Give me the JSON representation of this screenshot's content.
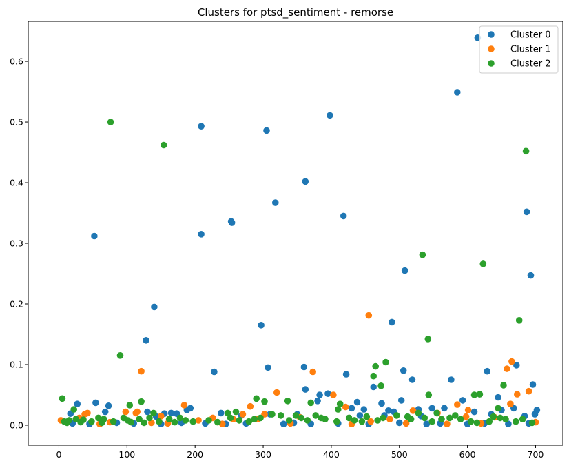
{
  "chart_data": {
    "type": "scatter",
    "title": "Clusters for ptsd_sentiment - remorse",
    "xlabel": "",
    "ylabel": "",
    "xlim": [
      -45,
      740
    ],
    "ylim": [
      -0.033,
      0.666
    ],
    "x_ticks": [
      0,
      100,
      200,
      300,
      400,
      500,
      600,
      700
    ],
    "y_ticks": [
      0.0,
      0.1,
      0.2,
      0.3,
      0.4,
      0.5,
      0.6
    ],
    "grid": false,
    "legend_position": "top-right",
    "series": [
      {
        "name": "Cluster 0",
        "color": "#1f77b4",
        "points": [
          [
            17,
            0.019
          ],
          [
            27,
            0.035
          ],
          [
            52,
            0.312
          ],
          [
            54,
            0.037
          ],
          [
            68,
            0.022
          ],
          [
            73,
            0.032
          ],
          [
            128,
            0.14
          ],
          [
            130,
            0.022
          ],
          [
            140,
            0.195
          ],
          [
            143,
            0.014
          ],
          [
            155,
            0.019
          ],
          [
            165,
            0.02
          ],
          [
            173,
            0.019
          ],
          [
            188,
            0.025
          ],
          [
            193,
            0.028
          ],
          [
            209,
            0.493
          ],
          [
            209,
            0.315
          ],
          [
            228,
            0.088
          ],
          [
            238,
            0.02
          ],
          [
            253,
            0.336
          ],
          [
            254,
            0.334
          ],
          [
            268,
            0.016
          ],
          [
            297,
            0.165
          ],
          [
            305,
            0.486
          ],
          [
            307,
            0.095
          ],
          [
            310,
            0.018
          ],
          [
            318,
            0.367
          ],
          [
            350,
            0.018
          ],
          [
            360,
            0.096
          ],
          [
            362,
            0.402
          ],
          [
            362,
            0.059
          ],
          [
            380,
            0.04
          ],
          [
            383,
            0.05
          ],
          [
            395,
            0.052
          ],
          [
            398,
            0.511
          ],
          [
            418,
            0.345
          ],
          [
            422,
            0.084
          ],
          [
            430,
            0.028
          ],
          [
            438,
            0.038
          ],
          [
            442,
            0.016
          ],
          [
            448,
            0.026
          ],
          [
            462,
            0.063
          ],
          [
            474,
            0.036
          ],
          [
            478,
            0.016
          ],
          [
            484,
            0.024
          ],
          [
            489,
            0.17
          ],
          [
            492,
            0.022
          ],
          [
            503,
            0.041
          ],
          [
            506,
            0.09
          ],
          [
            508,
            0.255
          ],
          [
            519,
            0.075
          ],
          [
            528,
            0.026
          ],
          [
            532,
            0.015
          ],
          [
            548,
            0.028
          ],
          [
            566,
            0.028
          ],
          [
            576,
            0.075
          ],
          [
            585,
            0.549
          ],
          [
            593,
            0.041
          ],
          [
            610,
            0.022
          ],
          [
            615,
            0.639
          ],
          [
            629,
            0.089
          ],
          [
            635,
            0.018
          ],
          [
            645,
            0.046
          ],
          [
            650,
            0.025
          ],
          [
            668,
            0.028
          ],
          [
            672,
            0.099
          ],
          [
            684,
            0.015
          ],
          [
            687,
            0.352
          ],
          [
            693,
            0.247
          ],
          [
            696,
            0.067
          ],
          [
            699,
            0.018
          ],
          [
            702,
            0.025
          ],
          [
            20,
            0.003
          ],
          [
            45,
            0.002
          ],
          [
            85,
            0.004
          ],
          [
            110,
            0.003
          ],
          [
            150,
            0.002
          ],
          [
            180,
            0.004
          ],
          [
            215,
            0.003
          ],
          [
            245,
            0.002
          ],
          [
            275,
            0.003
          ],
          [
            330,
            0.002
          ],
          [
            345,
            0.004
          ],
          [
            370,
            0.002
          ],
          [
            410,
            0.003
          ],
          [
            455,
            0.002
          ],
          [
            500,
            0.004
          ],
          [
            540,
            0.002
          ],
          [
            560,
            0.003
          ],
          [
            600,
            0.002
          ],
          [
            625,
            0.003
          ],
          [
            660,
            0.002
          ],
          [
            690,
            0.003
          ]
        ]
      },
      {
        "name": "Cluster 1",
        "color": "#ff7f0e",
        "points": [
          [
            3,
            0.008
          ],
          [
            30,
            0.012
          ],
          [
            38,
            0.018
          ],
          [
            42,
            0.02
          ],
          [
            75,
            0.005
          ],
          [
            98,
            0.022
          ],
          [
            113,
            0.02
          ],
          [
            115,
            0.022
          ],
          [
            121,
            0.089
          ],
          [
            136,
            0.004
          ],
          [
            150,
            0.015
          ],
          [
            184,
            0.033
          ],
          [
            205,
            0.008
          ],
          [
            226,
            0.012
          ],
          [
            256,
            0.01
          ],
          [
            270,
            0.018
          ],
          [
            281,
            0.031
          ],
          [
            292,
            0.01
          ],
          [
            302,
            0.018
          ],
          [
            320,
            0.054
          ],
          [
            354,
            0.013
          ],
          [
            373,
            0.088
          ],
          [
            403,
            0.05
          ],
          [
            421,
            0.03
          ],
          [
            455,
            0.181
          ],
          [
            458,
            0.006
          ],
          [
            486,
            0.01
          ],
          [
            520,
            0.024
          ],
          [
            556,
            0.02
          ],
          [
            585,
            0.034
          ],
          [
            598,
            0.014
          ],
          [
            601,
            0.025
          ],
          [
            640,
            0.013
          ],
          [
            658,
            0.093
          ],
          [
            663,
            0.035
          ],
          [
            665,
            0.105
          ],
          [
            673,
            0.051
          ],
          [
            690,
            0.056
          ],
          [
            700,
            0.005
          ],
          [
            60,
            0.002
          ],
          [
            160,
            0.003
          ],
          [
            240,
            0.002
          ],
          [
            340,
            0.003
          ],
          [
            430,
            0.002
          ],
          [
            510,
            0.003
          ],
          [
            570,
            0.002
          ],
          [
            620,
            0.003
          ]
        ]
      },
      {
        "name": "Cluster 2",
        "color": "#2ca02c",
        "points": [
          [
            5,
            0.044
          ],
          [
            22,
            0.026
          ],
          [
            76,
            0.5
          ],
          [
            90,
            0.115
          ],
          [
            104,
            0.033
          ],
          [
            121,
            0.039
          ],
          [
            139,
            0.02
          ],
          [
            154,
            0.462
          ],
          [
            248,
            0.02
          ],
          [
            260,
            0.022
          ],
          [
            290,
            0.044
          ],
          [
            302,
            0.039
          ],
          [
            336,
            0.04
          ],
          [
            370,
            0.037
          ],
          [
            410,
            0.026
          ],
          [
            413,
            0.035
          ],
          [
            462,
            0.081
          ],
          [
            465,
            0.097
          ],
          [
            473,
            0.065
          ],
          [
            480,
            0.104
          ],
          [
            528,
            0.02
          ],
          [
            534,
            0.281
          ],
          [
            542,
            0.142
          ],
          [
            543,
            0.05
          ],
          [
            555,
            0.02
          ],
          [
            610,
            0.05
          ],
          [
            618,
            0.051
          ],
          [
            623,
            0.266
          ],
          [
            645,
            0.028
          ],
          [
            653,
            0.066
          ],
          [
            676,
            0.173
          ],
          [
            686,
            0.452
          ],
          [
            8,
            0.006
          ],
          [
            12,
            0.004
          ],
          [
            15,
            0.008
          ],
          [
            25,
            0.01
          ],
          [
            32,
            0.005
          ],
          [
            36,
            0.009
          ],
          [
            48,
            0.006
          ],
          [
            58,
            0.012
          ],
          [
            63,
            0.004
          ],
          [
            66,
            0.01
          ],
          [
            80,
            0.006
          ],
          [
            95,
            0.012
          ],
          [
            101,
            0.008
          ],
          [
            106,
            0.005
          ],
          [
            118,
            0.01
          ],
          [
            125,
            0.004
          ],
          [
            133,
            0.012
          ],
          [
            147,
            0.006
          ],
          [
            162,
            0.01
          ],
          [
            170,
            0.005
          ],
          [
            178,
            0.012
          ],
          [
            186,
            0.008
          ],
          [
            197,
            0.006
          ],
          [
            220,
            0.008
          ],
          [
            233,
            0.005
          ],
          [
            252,
            0.012
          ],
          [
            265,
            0.008
          ],
          [
            279,
            0.006
          ],
          [
            287,
            0.01
          ],
          [
            296,
            0.012
          ],
          [
            313,
            0.018
          ],
          [
            326,
            0.016
          ],
          [
            338,
            0.008
          ],
          [
            348,
            0.016
          ],
          [
            356,
            0.012
          ],
          [
            365,
            0.008
          ],
          [
            377,
            0.016
          ],
          [
            385,
            0.012
          ],
          [
            391,
            0.01
          ],
          [
            408,
            0.006
          ],
          [
            426,
            0.012
          ],
          [
            434,
            0.008
          ],
          [
            445,
            0.006
          ],
          [
            452,
            0.014
          ],
          [
            468,
            0.008
          ],
          [
            476,
            0.012
          ],
          [
            496,
            0.016
          ],
          [
            512,
            0.014
          ],
          [
            517,
            0.01
          ],
          [
            537,
            0.012
          ],
          [
            548,
            0.006
          ],
          [
            562,
            0.01
          ],
          [
            574,
            0.012
          ],
          [
            582,
            0.016
          ],
          [
            590,
            0.01
          ],
          [
            605,
            0.006
          ],
          [
            614,
            0.004
          ],
          [
            632,
            0.006
          ],
          [
            638,
            0.014
          ],
          [
            648,
            0.012
          ],
          [
            656,
            0.01
          ],
          [
            671,
            0.006
          ],
          [
            681,
            0.01
          ],
          [
            695,
            0.004
          ]
        ]
      }
    ]
  }
}
